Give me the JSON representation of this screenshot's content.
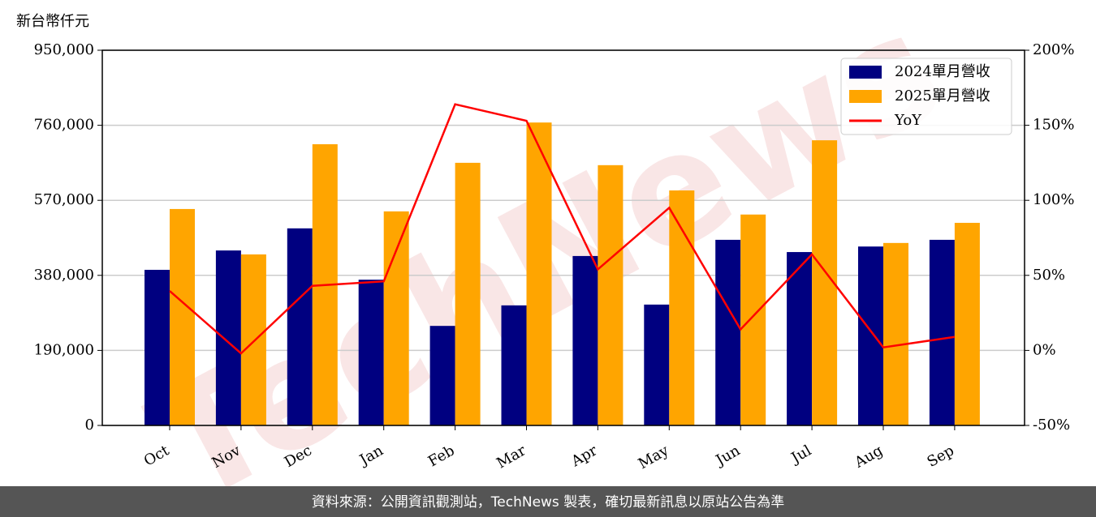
{
  "chart_data": {
    "type": "bar_line",
    "unit_label": "新台幣仟元",
    "watermark": "TechNews",
    "source": "資料來源：公開資訊觀測站，TechNews 製表，確切最新訊息以原站公告為準",
    "categories": [
      "Oct",
      "Nov",
      "Dec",
      "Jan",
      "Feb",
      "Mar",
      "Apr",
      "May",
      "Jun",
      "Jul",
      "Aug",
      "Sep"
    ],
    "series": [
      {
        "name": "2024單月營收",
        "color": "#000080",
        "values": [
          394000,
          443000,
          499000,
          369000,
          252000,
          304000,
          429000,
          306000,
          470000,
          439000,
          453000,
          470000
        ]
      },
      {
        "name": "2025單月營收",
        "color": "#ffa500",
        "values": [
          548000,
          433000,
          712000,
          542000,
          665000,
          767000,
          659000,
          595000,
          534000,
          722000,
          462000,
          513000
        ]
      },
      {
        "name": "YoY",
        "color": "#ff0000",
        "axis": "y2",
        "values": [
          39.6,
          -2,
          43,
          46,
          164,
          153,
          54,
          95,
          14,
          64,
          2,
          9
        ]
      }
    ],
    "ylim": [
      0,
      950000
    ],
    "yticks": [
      0,
      {
        "value": 190000,
        "label": "190,000"
      },
      {
        "value": 380000,
        "label": "380,000"
      },
      {
        "value": 570000,
        "label": "570,000"
      },
      {
        "value": 760000,
        "label": "760,000"
      },
      {
        "value": 950000,
        "label": "950,000"
      }
    ],
    "y2lim": [
      -50,
      200
    ],
    "y2ticks": [
      {
        "value": -50,
        "label": "-50%"
      },
      {
        "value": 0,
        "label": "0%"
      },
      {
        "value": 50,
        "label": "50%"
      },
      {
        "value": 100,
        "label": "100%"
      },
      {
        "value": 150,
        "label": "150%"
      },
      {
        "value": 200,
        "label": "200%"
      }
    ],
    "grid": true,
    "legend": "upper right"
  }
}
